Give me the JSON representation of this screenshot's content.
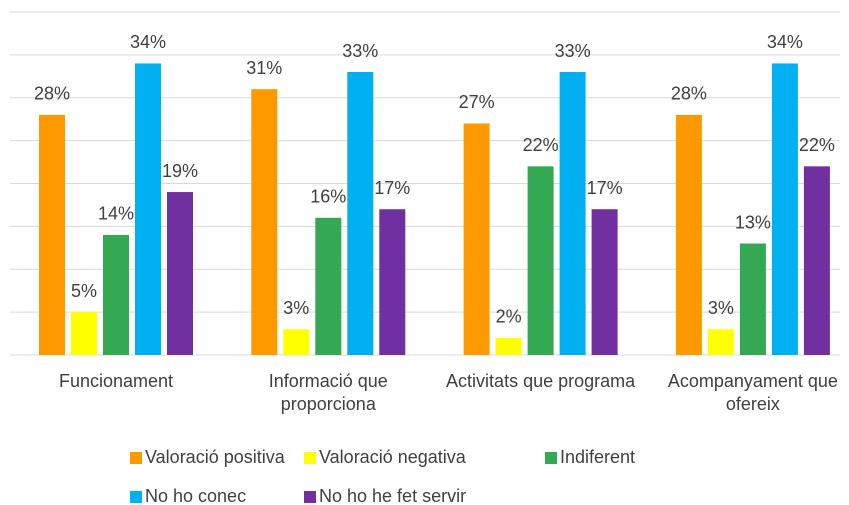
{
  "chart_data": {
    "type": "bar",
    "categories": [
      "Funcionament",
      "Informació que proporciona",
      "Activitats que programa",
      "Acompanyament que ofereix"
    ],
    "series": [
      {
        "name": "Valoració positiva",
        "color": "#FF9900",
        "values": [
          28,
          31,
          27,
          28
        ],
        "value_labels": [
          "28%",
          "31%",
          "27%",
          "28%"
        ]
      },
      {
        "name": "Valoració negativa",
        "color": "#FFFF00",
        "values": [
          5,
          3,
          2,
          3
        ],
        "value_labels": [
          "5%",
          "3%",
          "2%",
          "3%"
        ]
      },
      {
        "name": "Indiferent",
        "color": "#34A853",
        "values": [
          14,
          16,
          22,
          13
        ],
        "value_labels": [
          "14%",
          "16%",
          "22%",
          "13%"
        ]
      },
      {
        "name": "No ho conec",
        "color": "#00B0F0",
        "values": [
          34,
          33,
          33,
          34
        ],
        "value_labels": [
          "34%",
          "33%",
          "33%",
          "34%"
        ]
      },
      {
        "name": "No ho he fet servir",
        "color": "#7030A0",
        "values": [
          19,
          17,
          17,
          22
        ],
        "value_labels": [
          "19%",
          "17%",
          "17%",
          "22%"
        ]
      }
    ],
    "ylim": [
      0,
      40
    ],
    "yticks": [
      0,
      5,
      10,
      15,
      20,
      25,
      30,
      35,
      40
    ],
    "grid": true,
    "legend": "bottom"
  }
}
